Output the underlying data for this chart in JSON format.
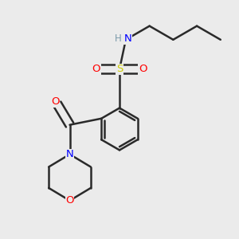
{
  "background_color": "#ebebeb",
  "atom_colors": {
    "C": "#000000",
    "H": "#7a9aaa",
    "N": "#0000ff",
    "O": "#ff0000",
    "S": "#cccc00"
  },
  "bond_color": "#2a2a2a",
  "figsize": [
    3.0,
    3.0
  ],
  "dpi": 100
}
